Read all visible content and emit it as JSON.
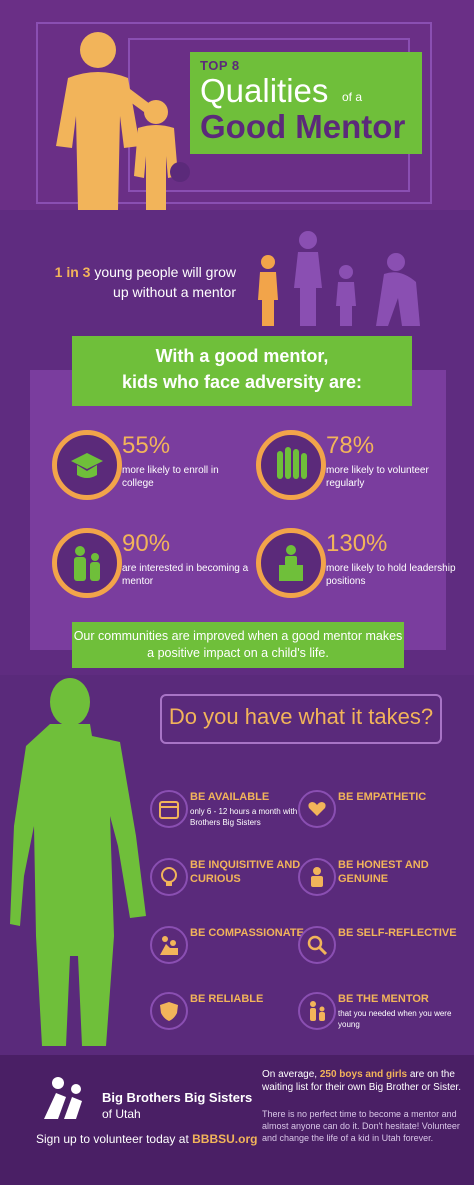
{
  "header": {
    "top8": "TOP 8",
    "qualities": "Qualities",
    "of_a": "of a",
    "good_mentor": "Good Mentor"
  },
  "stat": {
    "strong": "1 in 3",
    "text": "young people will grow up without a mentor"
  },
  "banner1": {
    "line1": "With a good mentor,",
    "line2": "kids who face adversity are:"
  },
  "metrics": [
    {
      "pct": "55%",
      "desc": "more likely to enroll in college",
      "icon": "graduation-cap-icon",
      "progress": 55
    },
    {
      "pct": "78%",
      "desc": "more likely to volunteer regularly",
      "icon": "raised-hands-icon",
      "progress": 78
    },
    {
      "pct": "90%",
      "desc": "are interested in becoming a mentor",
      "icon": "people-icon",
      "progress": 90
    },
    {
      "pct": "130%",
      "desc": "more likely to hold leadership positions",
      "icon": "podium-icon",
      "progress": 100
    }
  ],
  "banner2": {
    "text": "Our communities are improved when a good mentor makes a positive impact on a child's life."
  },
  "question": "Do you have what it takes?",
  "qualities_list": [
    {
      "label": "BE AVAILABLE",
      "sub": "only 6 - 12 hours a month with Big Brothers Big Sisters",
      "icon": "calendar-icon"
    },
    {
      "label": "BE EMPATHETIC",
      "sub": "",
      "icon": "heart-hands-icon"
    },
    {
      "label": "BE INQUISITIVE AND CURIOUS",
      "sub": "",
      "icon": "lightbulb-head-icon"
    },
    {
      "label": "BE HONEST AND GENUINE",
      "sub": "",
      "icon": "person-heart-icon"
    },
    {
      "label": "BE COMPASSIONATE",
      "sub": "",
      "icon": "climbing-help-icon"
    },
    {
      "label": "BE SELF-REFLECTIVE",
      "sub": "",
      "icon": "magnifier-icon"
    },
    {
      "label": "BE RELIABLE",
      "sub": "",
      "icon": "shield-icon"
    },
    {
      "label": "BE THE MENTOR",
      "sub": "that you needed when you were young",
      "icon": "adult-child-icon"
    }
  ],
  "footer": {
    "org_name": "Big Brothers Big Sisters",
    "org_location": "of Utah",
    "signup_text": "Sign up to volunteer today at",
    "signup_link": "BBBSU.org",
    "waiting_prefix": "On average,",
    "waiting_highlight": "250 boys and girls",
    "waiting_suffix": "are on the waiting list for their own Big Brother or Sister.",
    "closing": "There is no perfect time to become a mentor and almost anyone can do it. Don't hesitate! Volunteer and change the life of a kid in Utah forever."
  }
}
